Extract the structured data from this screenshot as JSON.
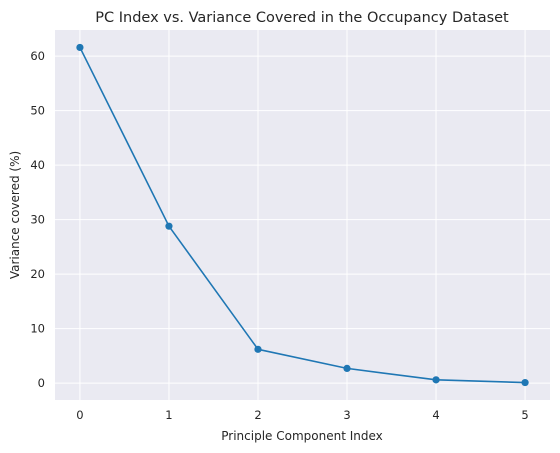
{
  "chart_data": {
    "type": "line",
    "title": "PC Index vs. Variance Covered in the Occupancy Dataset",
    "xlabel": "Principle Component Index",
    "ylabel": "Variance covered (%)",
    "x": [
      0,
      1,
      2,
      3,
      4,
      5
    ],
    "y": [
      61.6,
      28.8,
      6.2,
      2.7,
      0.6,
      0.1
    ],
    "xticks": [
      0,
      1,
      2,
      3,
      4,
      5
    ],
    "yticks": [
      0,
      10,
      20,
      30,
      40,
      50,
      60
    ],
    "xlim": [
      -0.28,
      5.28
    ],
    "ylim": [
      -3.1,
      64.8
    ],
    "grid": true,
    "marker": "circle",
    "colors": {
      "line": "#1f77b4",
      "background": "#eaeaf2",
      "grid": "#ffffff"
    }
  }
}
